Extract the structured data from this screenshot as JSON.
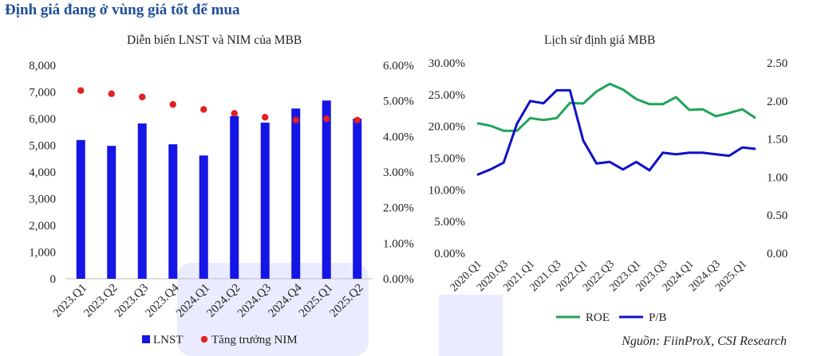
{
  "heading": "Định giá đang ở vùng giá tốt để mua",
  "source": "Nguồn: FiinProX, CSI Research",
  "colors": {
    "bar": "#1515e6",
    "dot": "#e32020",
    "roe": "#1fa35a",
    "pb": "#1010c8"
  },
  "chart_data": [
    {
      "type": "bar",
      "title": "Diễn biến LNST và NIM của MBB",
      "categories": [
        "2023.Q1",
        "2023.Q2",
        "2023.Q3",
        "2023.Q4",
        "2024.Q1",
        "2024.Q2",
        "2024.Q3",
        "2024.Q4",
        "2025.Q1",
        "2025.Q2"
      ],
      "series": [
        {
          "name": "LNST",
          "axis": "left",
          "kind": "bar",
          "values": [
            5200,
            4980,
            5820,
            5040,
            4620,
            6100,
            5850,
            6380,
            6680,
            6000
          ]
        },
        {
          "name": "Tăng trưởng NIM",
          "axis": "right",
          "kind": "dot",
          "values": [
            0.0529,
            0.052,
            0.0511,
            0.049,
            0.0476,
            0.0465,
            0.0454,
            0.0446,
            0.045,
            0.0446
          ]
        }
      ],
      "ylim_left": [
        0,
        8000
      ],
      "yticks_left": [
        "0",
        "1,000",
        "2,000",
        "3,000",
        "4,000",
        "5,000",
        "6,000",
        "7,000",
        "8,000"
      ],
      "ylim_right": [
        0,
        0.06
      ],
      "yticks_right": [
        "0.00%",
        "1.00%",
        "2.00%",
        "3.00%",
        "4.00%",
        "5.00%",
        "6.00%"
      ],
      "legend_position": "bottom"
    },
    {
      "type": "line",
      "title": "Lịch sử định giá MBB",
      "x": [
        "2020.Q1",
        "2020.Q2",
        "2020.Q3",
        "2020.Q4",
        "2021.Q1",
        "2021.Q2",
        "2021.Q3",
        "2021.Q4",
        "2022.Q1",
        "2022.Q2",
        "2022.Q3",
        "2022.Q4",
        "2023.Q1",
        "2023.Q2",
        "2023.Q3",
        "2023.Q4",
        "2024.Q1",
        "2024.Q2",
        "2024.Q3",
        "2024.Q4",
        "2025.Q1",
        "2025.Q2"
      ],
      "x_tick_labels": [
        "2020.Q1",
        "2020.Q3",
        "2021.Q1",
        "2021.Q3",
        "2022.Q1",
        "2022.Q3",
        "2023.Q1",
        "2023.Q3",
        "2024.Q1",
        "2024.Q3",
        "2025.Q1"
      ],
      "series": [
        {
          "name": "ROE",
          "axis": "left",
          "values": [
            0.205,
            0.201,
            0.193,
            0.193,
            0.213,
            0.21,
            0.213,
            0.237,
            0.236,
            0.255,
            0.267,
            0.258,
            0.243,
            0.235,
            0.235,
            0.246,
            0.226,
            0.227,
            0.216,
            0.221,
            0.227,
            0.213
          ]
        },
        {
          "name": "P/B",
          "axis": "right",
          "values": [
            1.03,
            1.1,
            1.19,
            1.7,
            2.0,
            1.97,
            2.14,
            2.14,
            1.48,
            1.18,
            1.2,
            1.1,
            1.2,
            1.09,
            1.32,
            1.3,
            1.32,
            1.32,
            1.3,
            1.28,
            1.39,
            1.37
          ]
        }
      ],
      "ylim_left": [
        0,
        0.3
      ],
      "yticks_left": [
        "0.00%",
        "5.00%",
        "10.00%",
        "15.00%",
        "20.00%",
        "25.00%",
        "30.00%"
      ],
      "ylim_right": [
        0,
        2.5
      ],
      "yticks_right": [
        "0.00",
        "0.50",
        "1.00",
        "1.50",
        "2.00",
        "2.50"
      ],
      "legend_position": "bottom"
    }
  ]
}
